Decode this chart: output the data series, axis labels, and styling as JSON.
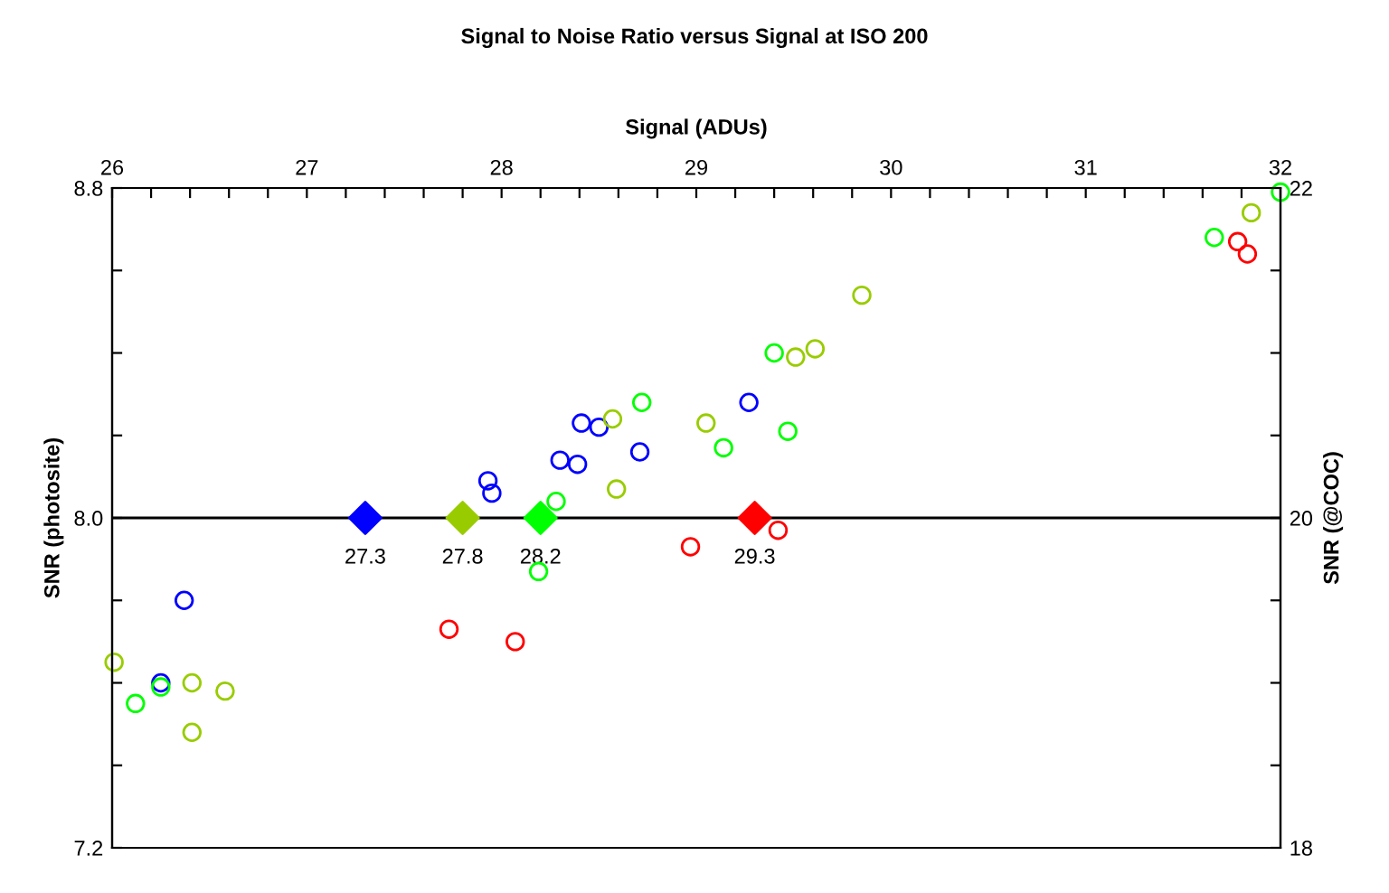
{
  "chart_data": {
    "type": "scatter",
    "title": "Signal to Noise Ratio versus Signal at ISO 200",
    "xlabel": "Signal (ADUs)",
    "ylabel": "SNR (photosite)",
    "y2label": "SNR (@COC)",
    "marker": "circle",
    "grid": false,
    "legend": false,
    "xlim": [
      26,
      32
    ],
    "xticks": [
      26,
      {
        "value": 26.2,
        "label": null
      },
      {
        "value": 26.4,
        "label": null
      },
      {
        "value": 26.6,
        "label": null
      },
      {
        "value": 26.8,
        "label": null
      },
      27,
      {
        "value": 27.2,
        "label": null
      },
      {
        "value": 27.4,
        "label": null
      },
      {
        "value": 27.6,
        "label": null
      },
      {
        "value": 27.8,
        "label": null
      },
      28,
      {
        "value": 28.2,
        "label": null
      },
      {
        "value": 28.4,
        "label": null
      },
      {
        "value": 28.6,
        "label": null
      },
      {
        "value": 28.8,
        "label": null
      },
      29,
      {
        "value": 29.2,
        "label": null
      },
      {
        "value": 29.4,
        "label": null
      },
      {
        "value": 29.6,
        "label": null
      },
      {
        "value": 29.8,
        "label": null
      },
      30,
      {
        "value": 30.2,
        "label": null
      },
      {
        "value": 30.4,
        "label": null
      },
      {
        "value": 30.6,
        "label": null
      },
      {
        "value": 30.8,
        "label": null
      },
      31,
      {
        "value": 31.2,
        "label": null
      },
      {
        "value": 31.4,
        "label": null
      },
      {
        "value": 31.6,
        "label": null
      },
      {
        "value": 31.8,
        "label": null
      },
      32
    ],
    "ylim": [
      7.2,
      8.8
    ],
    "yticks": [
      7.2,
      {
        "value": 7.4,
        "label": null
      },
      {
        "value": 7.6,
        "label": null
      },
      {
        "value": 7.8,
        "label": null
      },
      {
        "value": 8.0,
        "label": "8.0"
      },
      {
        "value": 8.2,
        "label": null
      },
      {
        "value": 8.4,
        "label": null
      },
      {
        "value": 8.6,
        "label": null
      },
      8.8
    ],
    "y2lim": [
      18,
      22
    ],
    "y2ticks": [
      18,
      {
        "value": 18.5,
        "label": null
      },
      {
        "value": 19,
        "label": null
      },
      {
        "value": 19.5,
        "label": null
      },
      20,
      {
        "value": 20.5,
        "label": null
      },
      {
        "value": 21,
        "label": null
      },
      {
        "value": 21.5,
        "label": null
      },
      22
    ],
    "ref_lines": [
      {
        "axis": "y",
        "value": 8.0,
        "color": "#000000"
      }
    ],
    "series": [
      {
        "color": "#0000ff",
        "x": [
          26.37,
          26.25,
          27.93,
          27.95,
          28.41,
          28.5,
          28.3,
          28.39,
          28.71,
          29.27
        ],
        "values": [
          7.8,
          7.6,
          8.09,
          8.06,
          8.23,
          8.22,
          8.14,
          8.13,
          8.16,
          8.28
        ]
      },
      {
        "color": "#00ff00",
        "x": [
          26.12,
          26.25,
          28.28,
          28.19,
          28.72,
          29.14,
          29.4,
          29.47,
          31.66,
          32.0
        ],
        "values": [
          7.55,
          7.59,
          8.04,
          7.87,
          8.28,
          8.17,
          8.4,
          8.21,
          8.68,
          8.79
        ]
      },
      {
        "color": "#99cc00",
        "x": [
          26.01,
          26.41,
          26.41,
          26.58,
          28.57,
          28.59,
          29.05,
          29.51,
          29.61,
          29.85,
          31.85
        ],
        "values": [
          7.65,
          7.6,
          7.48,
          7.58,
          8.24,
          8.07,
          8.23,
          8.39,
          8.41,
          8.54,
          8.74
        ]
      },
      {
        "color": "#ff0000",
        "x": [
          27.73,
          28.07,
          28.97,
          29.42,
          31.78,
          31.83
        ],
        "values": [
          7.73,
          7.7,
          7.93,
          7.97,
          8.67,
          8.64
        ]
      },
      {
        "marker": "diamond",
        "colors": [
          "#0000ff",
          "#99cc00",
          "#00ff00",
          "#ff0000"
        ],
        "x": [
          27.3,
          27.8,
          28.2,
          29.3
        ],
        "values": [
          8.0,
          8.0,
          8.0,
          8.0
        ]
      }
    ],
    "annotations": [
      {
        "text": "27.3",
        "x": 27.3,
        "y": 8.0
      },
      {
        "text": "27.8",
        "x": 27.8,
        "y": 8.0
      },
      {
        "text": "28.2",
        "x": 28.2,
        "y": 8.0
      },
      {
        "text": "29.3",
        "x": 29.3,
        "y": 8.0
      }
    ]
  }
}
